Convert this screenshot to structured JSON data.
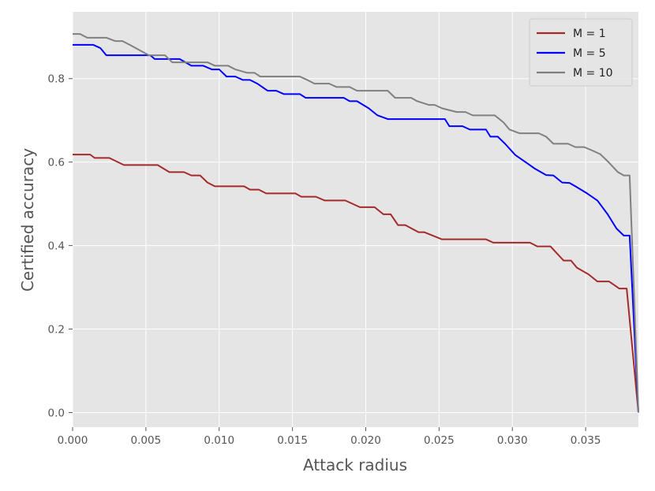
{
  "chart_data": {
    "type": "line",
    "xlabel": "Attack radius",
    "ylabel": "Certified accuracy",
    "xlim": [
      0,
      0.0386
    ],
    "ylim": [
      -0.035,
      0.96
    ],
    "xticks": [
      0.0,
      0.005,
      0.01,
      0.015,
      0.02,
      0.025,
      0.03,
      0.035
    ],
    "xtick_labels": [
      "0.000",
      "0.005",
      "0.010",
      "0.015",
      "0.020",
      "0.025",
      "0.030",
      "0.035"
    ],
    "yticks": [
      0.0,
      0.2,
      0.4,
      0.6,
      0.8
    ],
    "ytick_labels": [
      "0.0",
      "0.2",
      "0.4",
      "0.6",
      "0.8"
    ],
    "grid": true,
    "legend_position": "top-right",
    "series": [
      {
        "name": "M = 1",
        "color": "#a52a2a",
        "points": [
          [
            0,
            0.618
          ],
          [
            0.0012,
            0.618
          ],
          [
            0.0015,
            0.61
          ],
          [
            0.0025,
            0.61
          ],
          [
            0.0035,
            0.593
          ],
          [
            0.0058,
            0.593
          ],
          [
            0.0066,
            0.576
          ],
          [
            0.0076,
            0.576
          ],
          [
            0.0081,
            0.568
          ],
          [
            0.0087,
            0.568
          ],
          [
            0.0092,
            0.551
          ],
          [
            0.0097,
            0.542
          ],
          [
            0.0117,
            0.542
          ],
          [
            0.0121,
            0.534
          ],
          [
            0.0127,
            0.534
          ],
          [
            0.0132,
            0.525
          ],
          [
            0.0152,
            0.525
          ],
          [
            0.0156,
            0.517
          ],
          [
            0.0166,
            0.517
          ],
          [
            0.0172,
            0.508
          ],
          [
            0.0186,
            0.508
          ],
          [
            0.0196,
            0.492
          ],
          [
            0.0206,
            0.492
          ],
          [
            0.0212,
            0.475
          ],
          [
            0.0217,
            0.475
          ],
          [
            0.0222,
            0.449
          ],
          [
            0.0227,
            0.449
          ],
          [
            0.0236,
            0.432
          ],
          [
            0.024,
            0.432
          ],
          [
            0.0252,
            0.415
          ],
          [
            0.0282,
            0.415
          ],
          [
            0.0287,
            0.407
          ],
          [
            0.0312,
            0.407
          ],
          [
            0.0317,
            0.398
          ],
          [
            0.0326,
            0.398
          ],
          [
            0.0335,
            0.364
          ],
          [
            0.034,
            0.364
          ],
          [
            0.0344,
            0.347
          ],
          [
            0.0352,
            0.331
          ],
          [
            0.0358,
            0.314
          ],
          [
            0.0366,
            0.314
          ],
          [
            0.0373,
            0.297
          ],
          [
            0.0378,
            0.297
          ],
          [
            0.0386,
            0.0
          ]
        ]
      },
      {
        "name": "M = 5",
        "color": "#0000ff",
        "points": [
          [
            0,
            0.881
          ],
          [
            0.0014,
            0.881
          ],
          [
            0.0019,
            0.873
          ],
          [
            0.0023,
            0.856
          ],
          [
            0.0043,
            0.856
          ],
          [
            0.0053,
            0.856
          ],
          [
            0.0056,
            0.847
          ],
          [
            0.0073,
            0.847
          ],
          [
            0.0081,
            0.831
          ],
          [
            0.0089,
            0.831
          ],
          [
            0.0095,
            0.822
          ],
          [
            0.01,
            0.822
          ],
          [
            0.0105,
            0.805
          ],
          [
            0.0111,
            0.805
          ],
          [
            0.0116,
            0.797
          ],
          [
            0.0121,
            0.797
          ],
          [
            0.0126,
            0.788
          ],
          [
            0.0133,
            0.771
          ],
          [
            0.0139,
            0.771
          ],
          [
            0.0144,
            0.763
          ],
          [
            0.0155,
            0.763
          ],
          [
            0.0159,
            0.754
          ],
          [
            0.0185,
            0.754
          ],
          [
            0.0189,
            0.746
          ],
          [
            0.0194,
            0.746
          ],
          [
            0.0202,
            0.729
          ],
          [
            0.0208,
            0.712
          ],
          [
            0.0215,
            0.703
          ],
          [
            0.0225,
            0.703
          ],
          [
            0.0254,
            0.703
          ],
          [
            0.0257,
            0.686
          ],
          [
            0.0266,
            0.686
          ],
          [
            0.0271,
            0.678
          ],
          [
            0.0282,
            0.678
          ],
          [
            0.0285,
            0.661
          ],
          [
            0.029,
            0.661
          ],
          [
            0.0295,
            0.644
          ],
          [
            0.0302,
            0.617
          ],
          [
            0.0309,
            0.6
          ],
          [
            0.0315,
            0.585
          ],
          [
            0.0323,
            0.569
          ],
          [
            0.0328,
            0.568
          ],
          [
            0.0334,
            0.551
          ],
          [
            0.0339,
            0.55
          ],
          [
            0.0343,
            0.542
          ],
          [
            0.0351,
            0.525
          ],
          [
            0.0358,
            0.508
          ],
          [
            0.0365,
            0.475
          ],
          [
            0.0371,
            0.441
          ],
          [
            0.0376,
            0.424
          ],
          [
            0.038,
            0.424
          ],
          [
            0.0386,
            0.0
          ]
        ]
      },
      {
        "name": "M = 10",
        "color": "#808080",
        "points": [
          [
            0,
            0.907
          ],
          [
            0.0005,
            0.907
          ],
          [
            0.001,
            0.898
          ],
          [
            0.0023,
            0.898
          ],
          [
            0.0029,
            0.89
          ],
          [
            0.0034,
            0.89
          ],
          [
            0.0039,
            0.881
          ],
          [
            0.0052,
            0.856
          ],
          [
            0.0063,
            0.856
          ],
          [
            0.0068,
            0.839
          ],
          [
            0.0076,
            0.839
          ],
          [
            0.008,
            0.839
          ],
          [
            0.0092,
            0.839
          ],
          [
            0.0097,
            0.831
          ],
          [
            0.0106,
            0.831
          ],
          [
            0.0111,
            0.822
          ],
          [
            0.0119,
            0.814
          ],
          [
            0.0124,
            0.814
          ],
          [
            0.0128,
            0.805
          ],
          [
            0.0155,
            0.805
          ],
          [
            0.016,
            0.797
          ],
          [
            0.0165,
            0.788
          ],
          [
            0.0175,
            0.788
          ],
          [
            0.018,
            0.78
          ],
          [
            0.0189,
            0.78
          ],
          [
            0.0194,
            0.771
          ],
          [
            0.0215,
            0.771
          ],
          [
            0.022,
            0.754
          ],
          [
            0.0231,
            0.754
          ],
          [
            0.0235,
            0.746
          ],
          [
            0.0243,
            0.737
          ],
          [
            0.0247,
            0.737
          ],
          [
            0.0252,
            0.729
          ],
          [
            0.0262,
            0.72
          ],
          [
            0.0268,
            0.72
          ],
          [
            0.0273,
            0.712
          ],
          [
            0.0288,
            0.712
          ],
          [
            0.0294,
            0.695
          ],
          [
            0.0298,
            0.678
          ],
          [
            0.0305,
            0.669
          ],
          [
            0.0318,
            0.669
          ],
          [
            0.0323,
            0.661
          ],
          [
            0.0328,
            0.644
          ],
          [
            0.0338,
            0.644
          ],
          [
            0.0343,
            0.636
          ],
          [
            0.0349,
            0.636
          ],
          [
            0.0355,
            0.627
          ],
          [
            0.036,
            0.619
          ],
          [
            0.0365,
            0.602
          ],
          [
            0.0372,
            0.576
          ],
          [
            0.0376,
            0.568
          ],
          [
            0.038,
            0.568
          ],
          [
            0.0386,
            0.0
          ]
        ]
      }
    ]
  }
}
